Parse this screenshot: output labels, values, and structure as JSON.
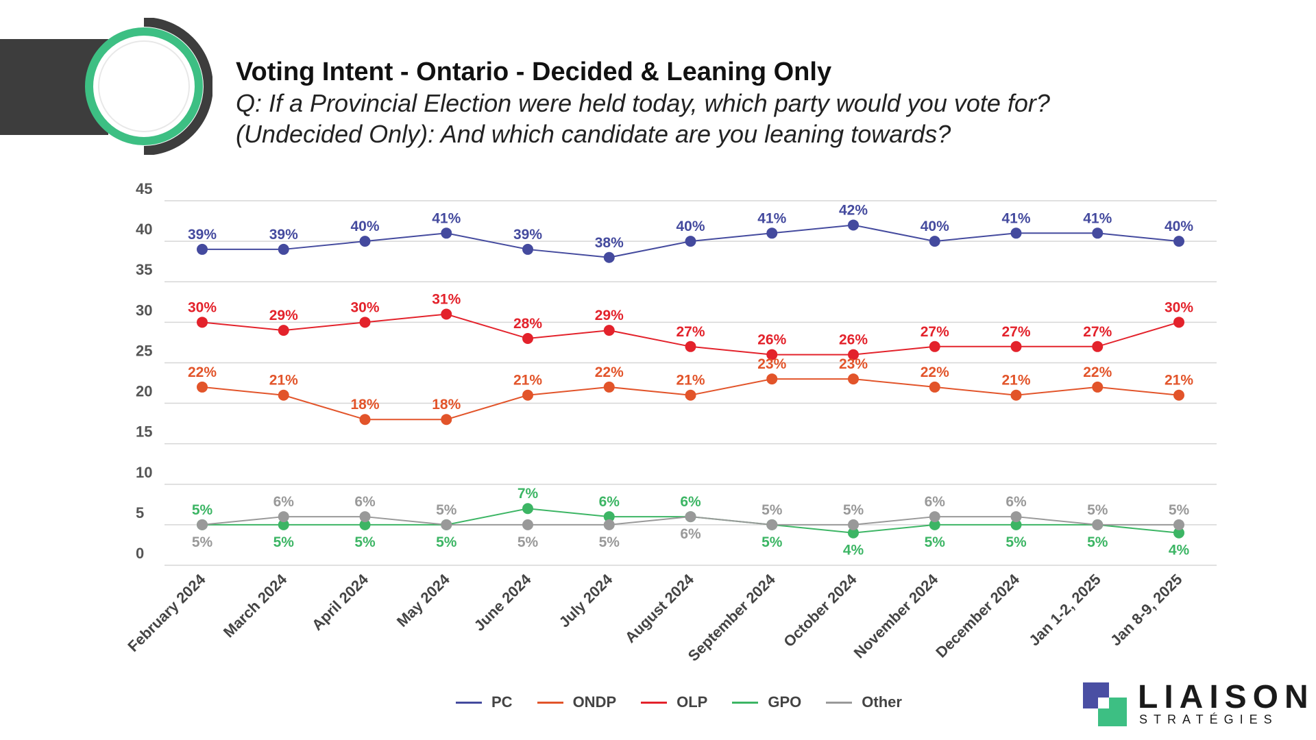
{
  "header": {
    "title": "Voting Intent - Ontario - Decided & Leaning Only",
    "subtitle_line1": "Q: If a Provincial Election were held today, which party would you vote for?",
    "subtitle_line2": "(Undecided Only): And which candidate are you leaning towards?"
  },
  "logo": {
    "name": "LIAISON",
    "sub": "STRATÉGIES",
    "colors": [
      "#4a4fa3",
      "#3dbf83"
    ]
  },
  "chart_data": {
    "type": "line",
    "categories": [
      "February 2024",
      "March 2024",
      "April 2024",
      "May 2024",
      "June 2024",
      "July 2024",
      "August 2024",
      "September 2024",
      "October 2024",
      "November 2024",
      "December 2024",
      "Jan 1-2, 2025",
      "Jan 8-9, 2025"
    ],
    "ylim": [
      0,
      45
    ],
    "yticks": [
      0,
      5,
      10,
      15,
      20,
      25,
      30,
      35,
      40,
      45
    ],
    "grid": true,
    "legend_position": "bottom",
    "series": [
      {
        "name": "PC",
        "color": "#444a9e",
        "values": [
          39,
          39,
          40,
          41,
          39,
          38,
          40,
          41,
          42,
          40,
          41,
          41,
          40
        ]
      },
      {
        "name": "ONDP",
        "color": "#e2542a",
        "values": [
          22,
          21,
          18,
          18,
          21,
          22,
          21,
          23,
          23,
          22,
          21,
          22,
          21
        ]
      },
      {
        "name": "OLP",
        "color": "#e3222b",
        "values": [
          30,
          29,
          30,
          31,
          28,
          29,
          27,
          26,
          26,
          27,
          27,
          27,
          30
        ]
      },
      {
        "name": "GPO",
        "color": "#3cb564",
        "values": [
          5,
          5,
          5,
          5,
          7,
          6,
          6,
          5,
          4,
          5,
          5,
          5,
          4
        ]
      },
      {
        "name": "Other",
        "color": "#999999",
        "values": [
          5,
          6,
          6,
          5,
          5,
          5,
          6,
          5,
          5,
          6,
          6,
          5,
          5
        ]
      }
    ],
    "data_labels": {
      "PC": [
        "39%",
        "39%",
        "40%",
        "41%",
        "39%",
        "38%",
        "40%",
        "41%",
        "42%",
        "40%",
        "41%",
        "41%",
        "40%"
      ],
      "ONDP": [
        "22%",
        "21%",
        "18%",
        "18%",
        "21%",
        "22%",
        "21%",
        "23%",
        "23%",
        "22%",
        "21%",
        "22%",
        "21%"
      ],
      "OLP": [
        "30%",
        "29%",
        "30%",
        "31%",
        "28%",
        "29%",
        "27%",
        "26%",
        "26%",
        "27%",
        "27%",
        "27%",
        "30%"
      ],
      "GPO": [
        "5%",
        "5%",
        "5%",
        "5%",
        "7%",
        "6%",
        "6%",
        "5%",
        "4%",
        "5%",
        "5%",
        "5%",
        "4%"
      ],
      "Other": [
        "5%",
        "6%",
        "6%",
        "5%",
        "5%",
        "5%",
        "6%",
        "5%",
        "5%",
        "6%",
        "6%",
        "5%",
        "5%"
      ]
    }
  }
}
